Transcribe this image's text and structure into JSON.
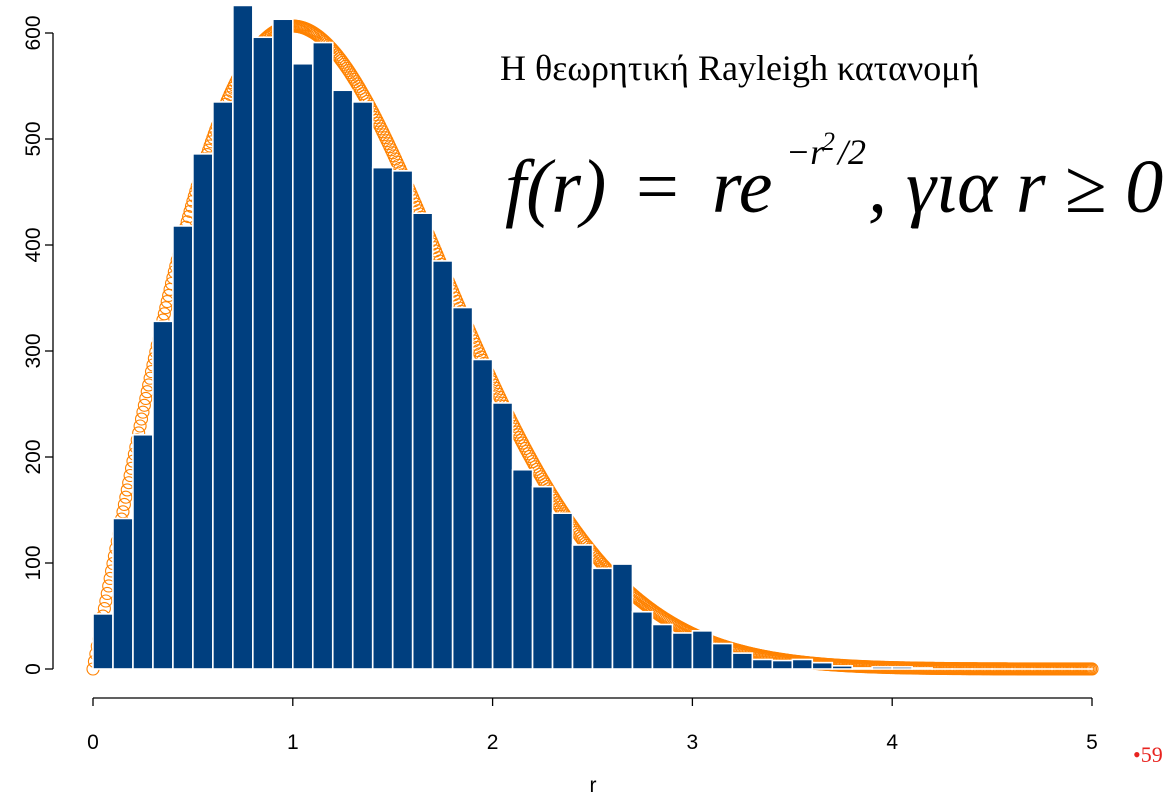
{
  "chart_data": {
    "type": "bar",
    "title": "Η θεωρητική Rayleigh κατανομή",
    "formula": {
      "lhs": "f(r)",
      "eq": "=",
      "base": "re",
      "exponent": "−r",
      "exp_sq": "2",
      "exp_div": "/2",
      "tail": ", για r ≥ 0"
    },
    "xlabel": "r",
    "ylabel": "",
    "xlim": [
      0,
      5
    ],
    "ylim": [
      0,
      620
    ],
    "x_ticks": [
      "0",
      "1",
      "2",
      "3",
      "4",
      "5"
    ],
    "y_ticks": [
      "0",
      "100",
      "200",
      "300",
      "400",
      "500",
      "600"
    ],
    "bin_width": 0.1,
    "bin_start": 0,
    "values": [
      52,
      142,
      221,
      328,
      418,
      486,
      535,
      626,
      596,
      613,
      571,
      591,
      546,
      535,
      473,
      470,
      430,
      385,
      341,
      292,
      251,
      188,
      172,
      147,
      117,
      95,
      99,
      54,
      42,
      34,
      36,
      24,
      15,
      9,
      8,
      9,
      6,
      3,
      1,
      2,
      2,
      1,
      0,
      0,
      0,
      0,
      0,
      0,
      0,
      0
    ],
    "theoretical_curve": {
      "name": "",
      "formula": "r·exp(−r²/2)",
      "scale": 1000,
      "x_range": [
        0,
        5
      ]
    },
    "colors": {
      "bars": "#003f7f",
      "bar_border": "#ffffff",
      "curve": "#ff8200",
      "page_number": "#e8231f"
    },
    "grid": false
  },
  "page_number": "•59"
}
